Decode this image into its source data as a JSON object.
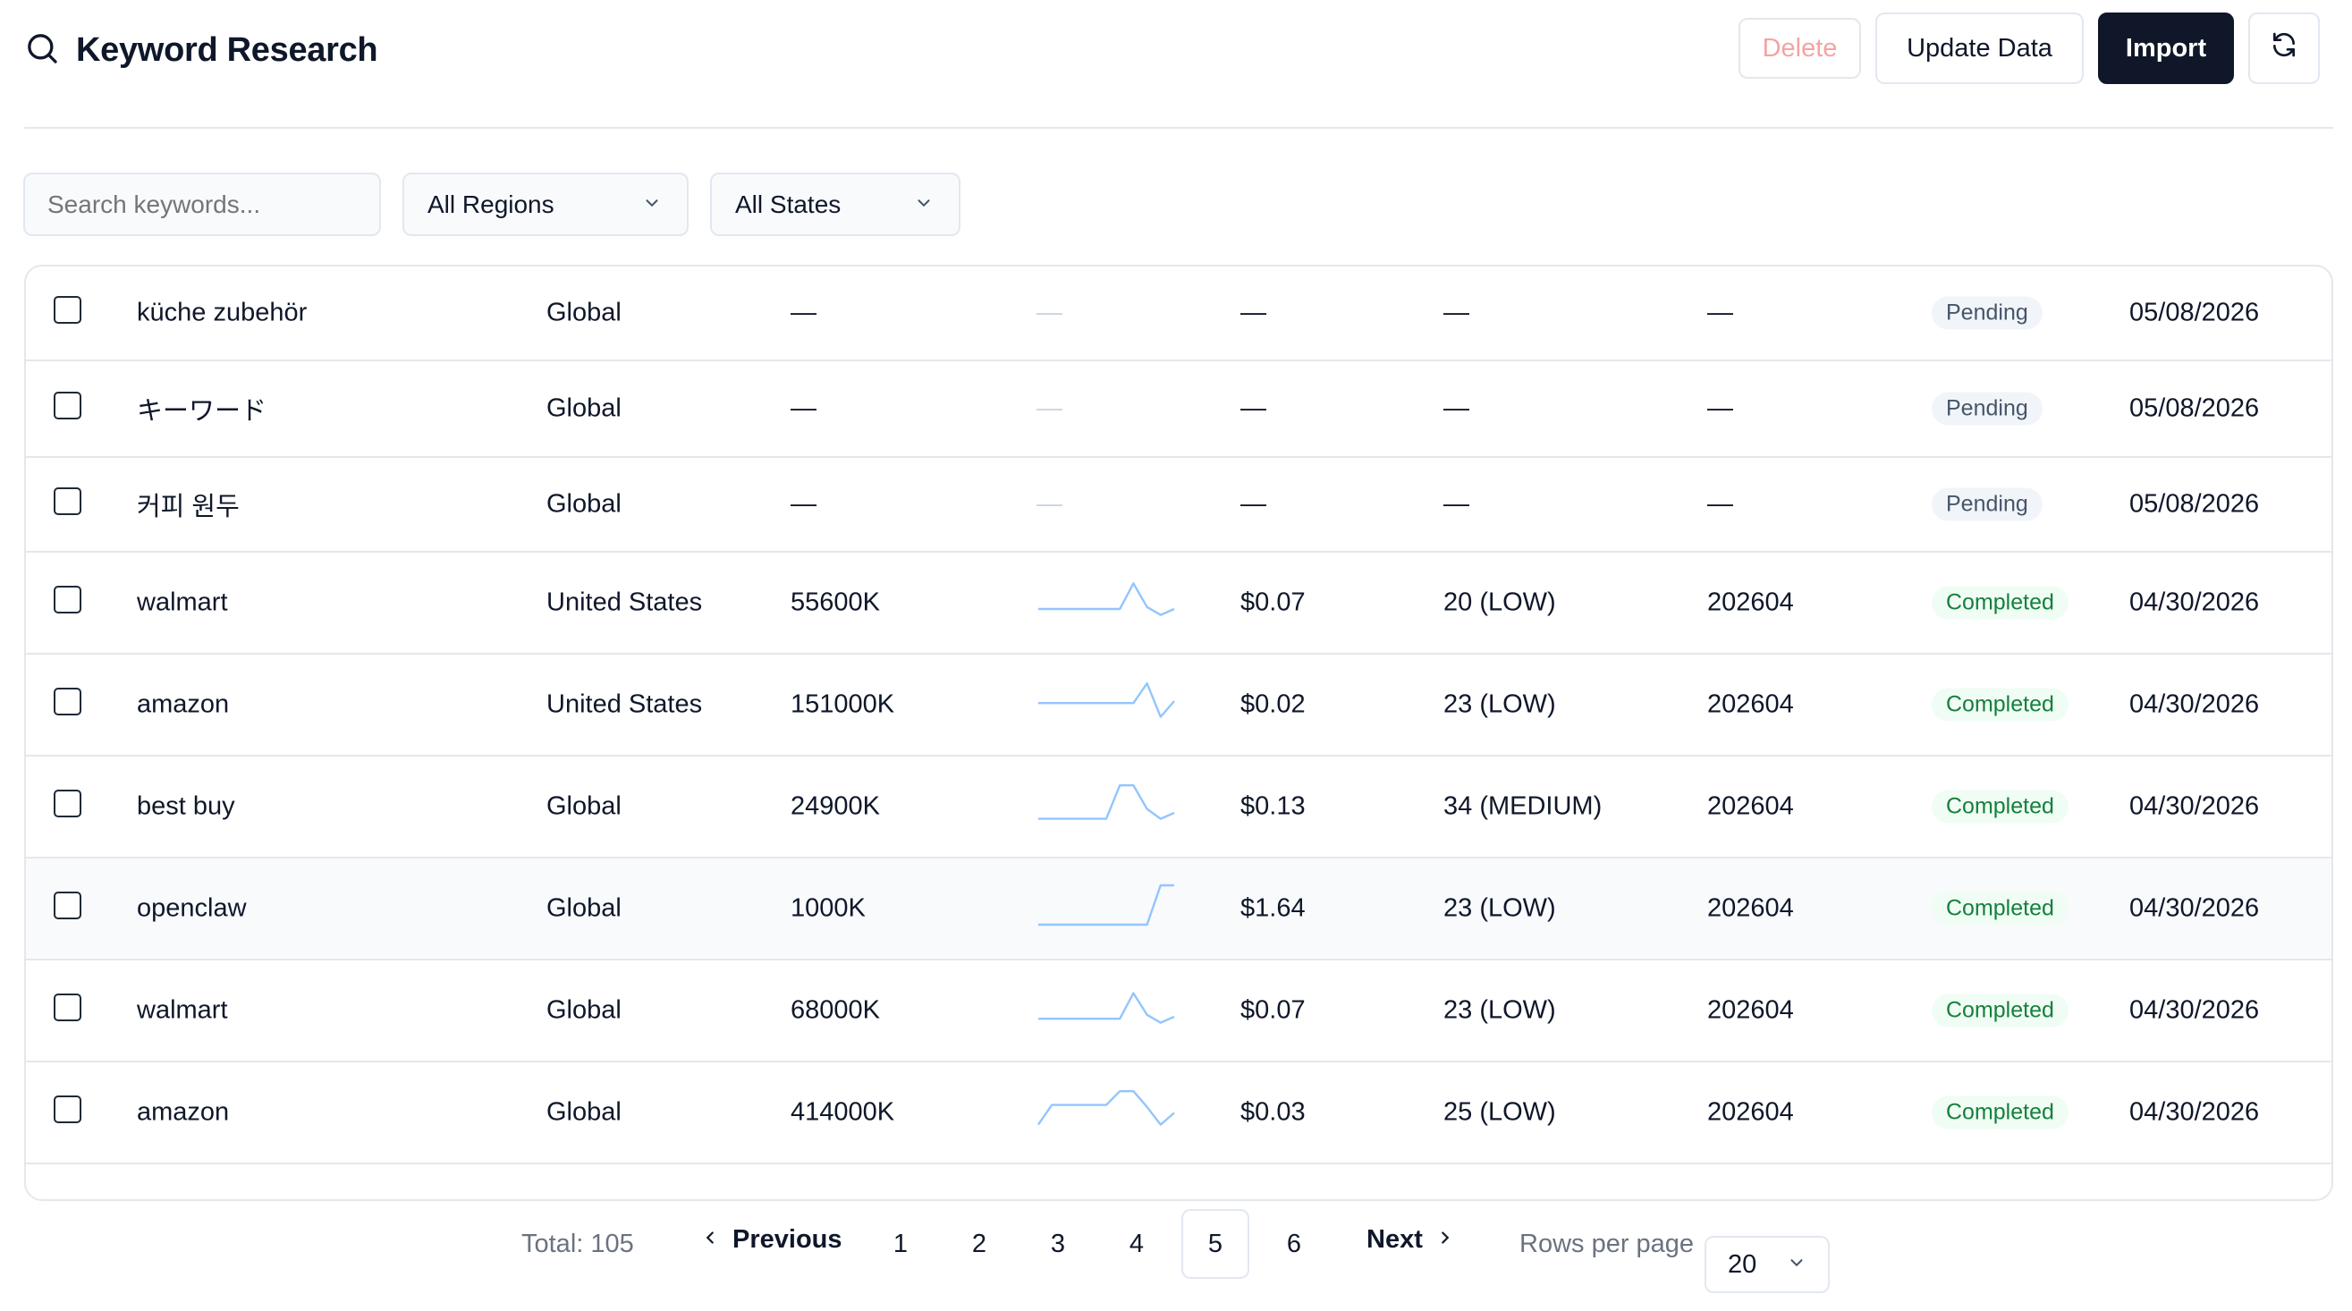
{
  "header": {
    "title": "Keyword Research",
    "buttons": {
      "delete": "Delete",
      "update": "Update Data",
      "import": "Import"
    }
  },
  "filters": {
    "search_placeholder": "Search keywords...",
    "region": "All Regions",
    "state": "All States"
  },
  "table": {
    "rows": [
      {
        "keyword": "küche zubehör",
        "region": "Global",
        "volume": "—",
        "trend": "—",
        "cpc": "—",
        "competition": "—",
        "month": "—",
        "status": "Pending",
        "date": "05/08/2026",
        "trend_values": []
      },
      {
        "keyword": "キーワード",
        "region": "Global",
        "volume": "—",
        "trend": "—",
        "cpc": "—",
        "competition": "—",
        "month": "—",
        "status": "Pending",
        "date": "05/08/2026",
        "trend_values": []
      },
      {
        "keyword": "커피 원두",
        "region": "Global",
        "volume": "—",
        "trend": "—",
        "cpc": "—",
        "competition": "—",
        "month": "—",
        "status": "Pending",
        "date": "05/08/2026",
        "trend_values": []
      },
      {
        "keyword": "walmart",
        "region": "United States",
        "volume": "55600K",
        "trend": "",
        "cpc": "$0.07",
        "competition": "20 (LOW)",
        "month": "202604",
        "status": "Completed",
        "date": "04/30/2026",
        "trend_values": [
          0.25,
          0.25,
          0.25,
          0.25,
          0.25,
          0.25,
          0.25,
          0.9,
          0.3,
          0.1,
          0.25
        ]
      },
      {
        "keyword": "amazon",
        "region": "United States",
        "volume": "151000K",
        "trend": "",
        "cpc": "$0.02",
        "competition": "23 (LOW)",
        "month": "202604",
        "status": "Completed",
        "date": "04/30/2026",
        "trend_values": [
          0.45,
          0.45,
          0.45,
          0.45,
          0.45,
          0.45,
          0.45,
          0.45,
          0.95,
          0.1,
          0.5
        ]
      },
      {
        "keyword": "best buy",
        "region": "Global",
        "volume": "24900K",
        "trend": "",
        "cpc": "$0.13",
        "competition": "34 (MEDIUM)",
        "month": "202604",
        "status": "Completed",
        "date": "04/30/2026",
        "trend_values": [
          0.1,
          0.1,
          0.1,
          0.1,
          0.1,
          0.1,
          0.95,
          0.95,
          0.35,
          0.1,
          0.25
        ]
      },
      {
        "keyword": "openclaw",
        "region": "Global",
        "volume": "1000K",
        "trend": "",
        "cpc": "$1.64",
        "competition": "23 (LOW)",
        "month": "202604",
        "status": "Completed",
        "date": "04/30/2026",
        "trend_values": [
          0.0,
          0.0,
          0.0,
          0.0,
          0.0,
          0.0,
          0.0,
          0.0,
          0.0,
          1.0,
          1.0
        ]
      },
      {
        "keyword": "walmart",
        "region": "Global",
        "volume": "68000K",
        "trend": "",
        "cpc": "$0.07",
        "competition": "23 (LOW)",
        "month": "202604",
        "status": "Completed",
        "date": "04/30/2026",
        "trend_values": [
          0.2,
          0.2,
          0.2,
          0.2,
          0.2,
          0.2,
          0.2,
          0.85,
          0.3,
          0.1,
          0.25
        ]
      },
      {
        "keyword": "amazon",
        "region": "Global",
        "volume": "414000K",
        "trend": "",
        "cpc": "$0.03",
        "competition": "25 (LOW)",
        "month": "202604",
        "status": "Completed",
        "date": "04/30/2026",
        "trend_values": [
          0.1,
          0.6,
          0.6,
          0.6,
          0.6,
          0.6,
          0.95,
          0.95,
          0.55,
          0.1,
          0.4
        ]
      }
    ]
  },
  "pagination": {
    "total": "Total: 105",
    "previous": "Previous",
    "pages": [
      "1",
      "2",
      "3",
      "4",
      "5",
      "6"
    ],
    "current": "5",
    "next": "Next",
    "rows_per_page_label": "Rows per page",
    "rows_per_page": "20"
  },
  "colors": {
    "primary": "#0f1729",
    "delete_text": "#f4a3a3",
    "completed_text": "#15803d",
    "completed_bg": "#f0fdf4",
    "pending_bg": "#f1f5f9",
    "trend_line": "#93c5fd"
  }
}
